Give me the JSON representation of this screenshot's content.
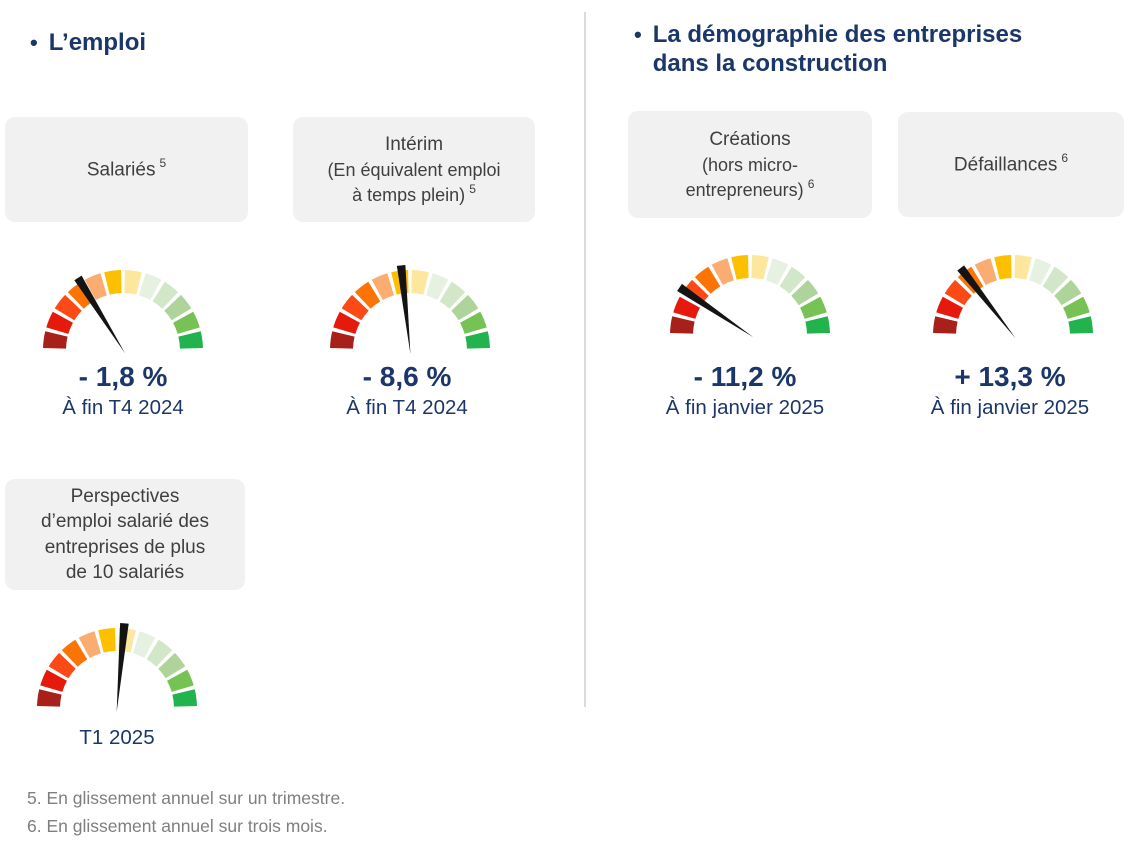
{
  "sections": [
    {
      "bullet": "•",
      "title_lines": [
        "L’emploi"
      ]
    },
    {
      "bullet": "•",
      "title_lines": [
        "La démographie des entreprises",
        "dans la construction"
      ]
    }
  ],
  "labels": {
    "salaries": {
      "line1": "Salariés",
      "ref": "5"
    },
    "interim": {
      "line1": "Intérim",
      "line2": "(En équivalent emploi",
      "line3": "à temps plein)",
      "ref": "5"
    },
    "creations": {
      "line1": "Créations",
      "line2": "(hors micro-",
      "line3": "entrepreneurs)",
      "ref": "6"
    },
    "defaillances": {
      "line1": "Défaillances",
      "ref": "6"
    },
    "perspectives": {
      "line1": "Perspectives",
      "line2": "d’emploi salarié des",
      "line3": "entreprises de plus",
      "line4": "de 10 salariés"
    }
  },
  "chart_data": {
    "type": "gauge",
    "arc_span_deg": 180,
    "segments": 12,
    "segment_colors": [
      "#A7201A",
      "#E61A0C",
      "#FB4A16",
      "#FB7405",
      "#FBAD71",
      "#FDC000",
      "#FCE79C",
      "#E7F1E1",
      "#D2E6C8",
      "#AFD49B",
      "#76C254",
      "#22B24E"
    ],
    "gauges": [
      {
        "name": "Salariés",
        "value": "- 1,8 %",
        "period": "À fin T4 2024",
        "needle_angle_deg": -32
      },
      {
        "name": "Intérim (En équivalent emploi à temps plein)",
        "value": "- 8,6 %",
        "period": "À fin T4 2024",
        "needle_angle_deg": -6
      },
      {
        "name": "Créations (hors micro-entrepreneurs)",
        "value": "- 11,2 %",
        "period": "À fin janvier 2025",
        "needle_angle_deg": -56
      },
      {
        "name": "Défaillances",
        "value": "+ 13,3 %",
        "period": "À fin janvier 2025",
        "needle_angle_deg": -38
      },
      {
        "name": "Perspectives d’emploi salarié des entreprises de plus de 10 salariés",
        "period": "T1 2025",
        "needle_angle_deg": 5
      }
    ]
  },
  "footnotes": [
    "5. En glissement annuel sur un trimestre.",
    "6. En glissement annuel sur trois mois."
  ],
  "colors": {
    "heading_navy": "#1B3769",
    "needle_black": "#141414",
    "box_background": "#F1F1F1",
    "footnote_gray": "#7F7F7F"
  }
}
